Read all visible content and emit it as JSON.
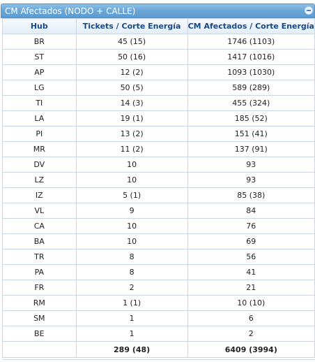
{
  "panel": {
    "title": "CM Afectados (NODO + CALLE)"
  },
  "table": {
    "columns": [
      "Hub",
      "Tickets / Corte Energía",
      "CM Afectados / Corte Energía"
    ],
    "rows": [
      [
        "BR",
        "45 (15)",
        "1746 (1103)"
      ],
      [
        "ST",
        "50 (16)",
        "1417 (1016)"
      ],
      [
        "AP",
        "12 (2)",
        "1093 (1030)"
      ],
      [
        "LG",
        "50 (5)",
        "589 (289)"
      ],
      [
        "TI",
        "14 (3)",
        "455 (324)"
      ],
      [
        "LA",
        "19 (1)",
        "185 (52)"
      ],
      [
        "PI",
        "13 (2)",
        "151 (41)"
      ],
      [
        "MR",
        "11 (2)",
        "137 (91)"
      ],
      [
        "DV",
        "10",
        "93"
      ],
      [
        "LZ",
        "10",
        "93"
      ],
      [
        "IZ",
        "5 (1)",
        "85 (38)"
      ],
      [
        "VL",
        "9",
        "84"
      ],
      [
        "CA",
        "10",
        "76"
      ],
      [
        "BA",
        "10",
        "69"
      ],
      [
        "TR",
        "8",
        "56"
      ],
      [
        "PA",
        "8",
        "41"
      ],
      [
        "FR",
        "2",
        "21"
      ],
      [
        "RM",
        "1 (1)",
        "10 (10)"
      ],
      [
        "SM",
        "1",
        "6"
      ],
      [
        "BE",
        "1",
        "2"
      ]
    ],
    "totals": [
      "",
      "289 (48)",
      "6409 (3994)"
    ]
  }
}
